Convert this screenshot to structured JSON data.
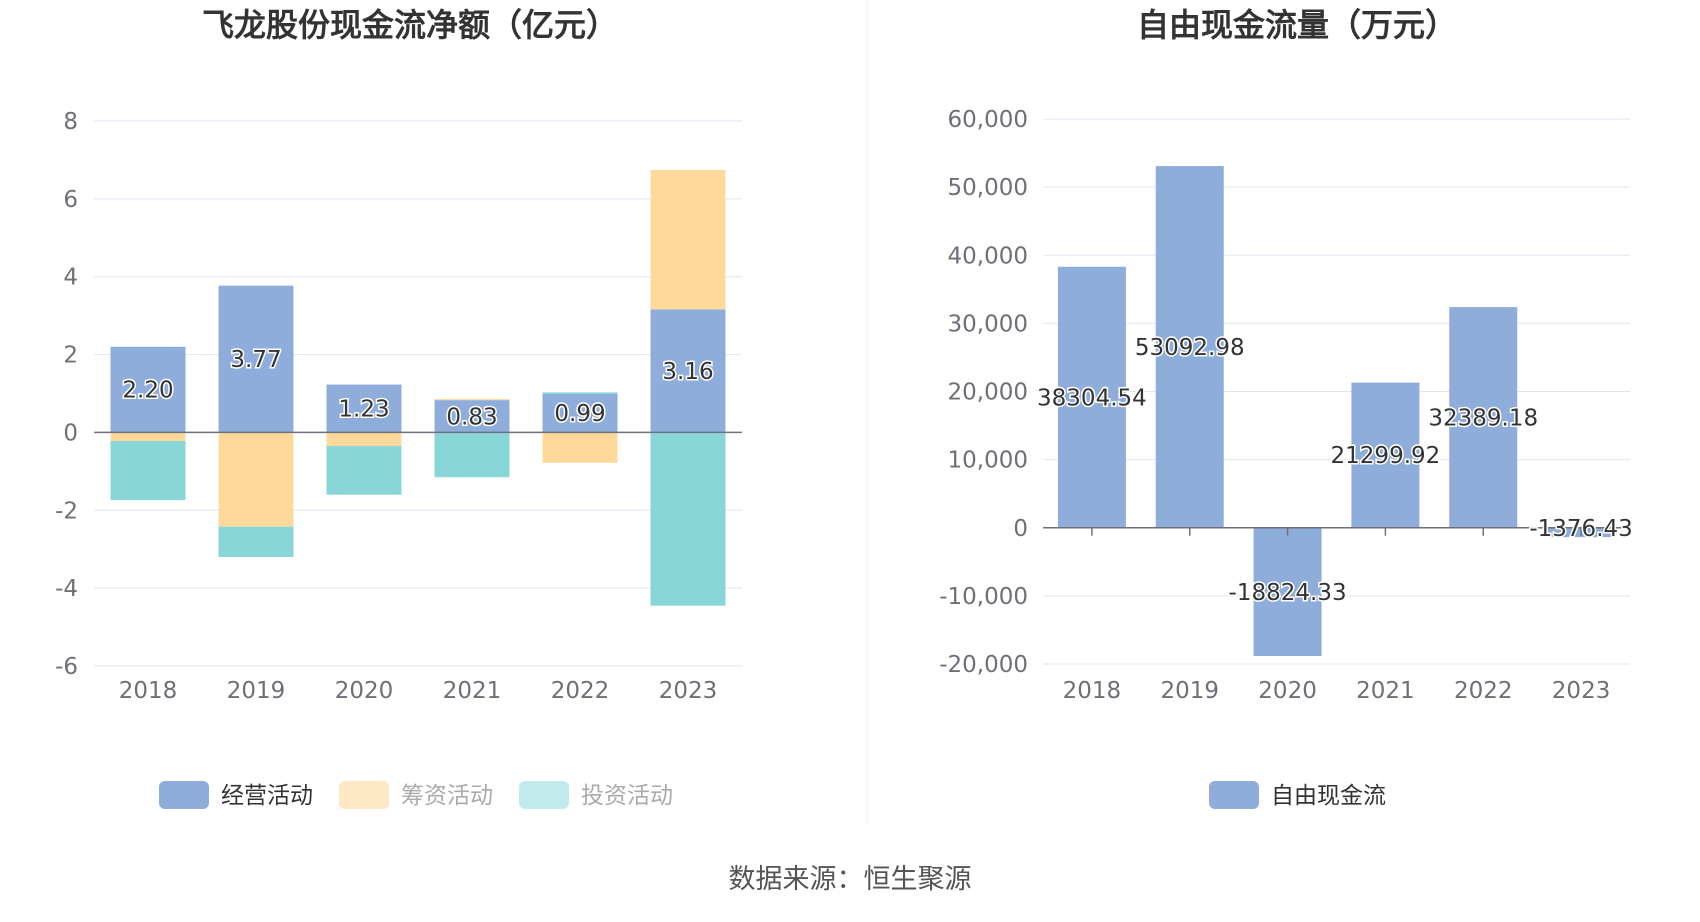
{
  "chart_data": [
    {
      "type": "bar",
      "stacked": true,
      "title": "飞龙股份现金流净额（亿元）",
      "categories": [
        "2018",
        "2019",
        "2020",
        "2021",
        "2022",
        "2023"
      ],
      "ylim": [
        -6,
        8
      ],
      "yticks": [
        "8",
        "6",
        "4",
        "2",
        "0",
        "-2",
        "-4",
        "-6"
      ],
      "ytick_values": [
        8,
        6,
        4,
        2,
        0,
        -2,
        -4,
        -6
      ],
      "series": [
        {
          "name": "经营活动",
          "color": "#8eadda",
          "values": [
            2.2,
            3.77,
            1.23,
            0.83,
            0.99,
            3.16
          ],
          "labels": [
            "2.20",
            "3.77",
            "1.23",
            "0.83",
            "0.99",
            "3.16"
          ]
        },
        {
          "name": "筹资活动",
          "color": "#ffd99c",
          "values": [
            -0.22,
            -2.42,
            -0.35,
            0.03,
            -0.78,
            3.58
          ]
        },
        {
          "name": "投资活动",
          "color": "#89d6d9",
          "values": [
            -1.52,
            -0.78,
            -1.25,
            -1.15,
            0.04,
            -4.45
          ]
        }
      ],
      "legend": [
        {
          "name": "经营活动",
          "color": "#8eadda",
          "text_color": "#333333"
        },
        {
          "name": "筹资活动",
          "color": "#ffe8c4",
          "text_color": "#aaaaaa"
        },
        {
          "name": "投资活动",
          "color": "#c3eaeb",
          "text_color": "#aaaaaa"
        }
      ],
      "legend_position": "bottom-center"
    },
    {
      "type": "bar",
      "title": "自由现金流量（万元）",
      "categories": [
        "2018",
        "2019",
        "2020",
        "2021",
        "2022",
        "2023"
      ],
      "ylim": [
        -20000,
        60000
      ],
      "yticks": [
        "60,000",
        "50,000",
        "40,000",
        "30,000",
        "20,000",
        "10,000",
        "0",
        "-10,000",
        "-20,000"
      ],
      "ytick_values": [
        60000,
        50000,
        40000,
        30000,
        20000,
        10000,
        0,
        -10000,
        -20000
      ],
      "series": [
        {
          "name": "自由现金流",
          "color": "#8eadda",
          "values": [
            38304.54,
            53092.98,
            -18824.33,
            21299.92,
            32389.18,
            -1376.43
          ],
          "labels": [
            "38304.54",
            "53092.98",
            "-18824.33",
            "21299.92",
            "32389.18",
            "-1376.43"
          ]
        }
      ],
      "legend": [
        {
          "name": "自由现金流",
          "color": "#8eadda",
          "text_color": "#333333"
        }
      ],
      "legend_position": "bottom-center"
    }
  ],
  "source": "数据来源：恒生聚源"
}
